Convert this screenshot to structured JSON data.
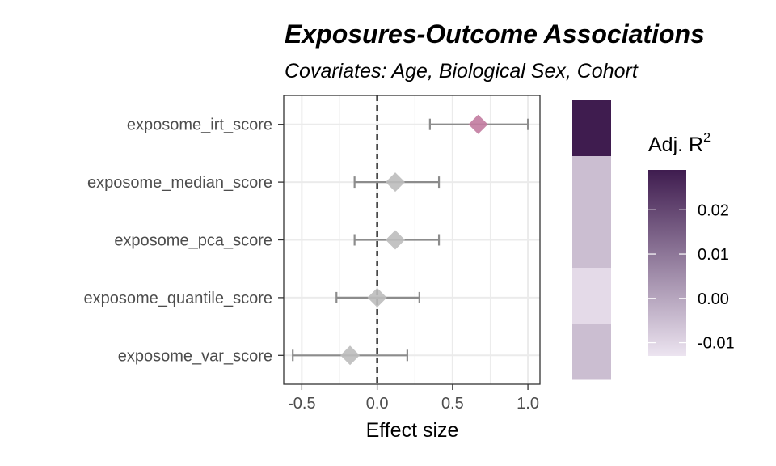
{
  "chart_data": {
    "type": "forest",
    "title": "Exposures-Outcome Associations",
    "subtitle": "Covariates: Age, Biological Sex, Cohort",
    "xlabel": "Effect size",
    "xlim": [
      -0.62,
      1.08
    ],
    "x_ticks": [
      "-0.5",
      "0.0",
      "0.5",
      "1.0"
    ],
    "x_tick_values": [
      -0.5,
      0.0,
      0.5,
      1.0
    ],
    "reference_line": 0,
    "grid": true,
    "rows": [
      {
        "label": "exposome_irt_score",
        "estimate": 0.67,
        "lower": 0.35,
        "upper": 1.0,
        "adj_r2": 0.029,
        "significant": true
      },
      {
        "label": "exposome_median_score",
        "estimate": 0.12,
        "lower": -0.15,
        "upper": 0.41,
        "adj_r2": -0.005,
        "significant": false
      },
      {
        "label": "exposome_pca_score",
        "estimate": 0.12,
        "lower": -0.15,
        "upper": 0.41,
        "adj_r2": -0.005,
        "significant": false
      },
      {
        "label": "exposome_quantile_score",
        "estimate": 0.0,
        "lower": -0.27,
        "upper": 0.28,
        "adj_r2": -0.011,
        "significant": false
      },
      {
        "label": "exposome_var_score",
        "estimate": -0.18,
        "lower": -0.56,
        "upper": 0.2,
        "adj_r2": -0.005,
        "significant": false
      }
    ],
    "legend": {
      "title": "Adj. R",
      "title_superscript": "2",
      "placement": "right",
      "range": [
        -0.013,
        0.029
      ],
      "ticks": [
        "0.02",
        "0.01",
        "0.00",
        "-0.01"
      ],
      "tick_values": [
        0.02,
        0.01,
        0.0,
        -0.01
      ],
      "low_color": "#ece4f0",
      "high_color": "#3f1c4f"
    },
    "colors": {
      "significant_point": "#c27ba0",
      "nonsignificant_point": "#bdbdbd",
      "error_bar": "#8c8c8c",
      "reference_line": "#000000",
      "grid": "#ebebeb"
    }
  }
}
